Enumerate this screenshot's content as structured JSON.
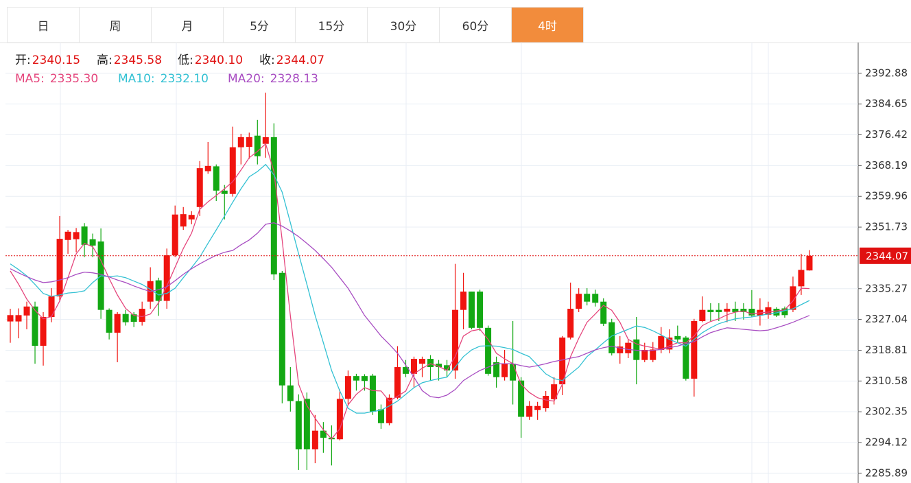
{
  "tabs": [
    "日",
    "周",
    "月",
    "5分",
    "15分",
    "30分",
    "60分",
    "4时"
  ],
  "active_tab": 7,
  "chart_data": {
    "type": "candlestick",
    "info": [
      {
        "label": "开:",
        "value": "2340.15"
      },
      {
        "label": "高:",
        "value": "2345.58"
      },
      {
        "label": "低:",
        "value": "2340.10"
      },
      {
        "label": "收:",
        "value": "2344.07"
      }
    ],
    "up_color": "#f0140f",
    "down_color": "#13a813",
    "info_label_color": "#222",
    "info_value_color": "#e01010",
    "open": [
      2326.5,
      2326.5,
      2328.1,
      2330.5,
      2320,
      2327.7,
      2333.2,
      2348.3,
      2348.5,
      2351.9,
      2348.5,
      2347.9,
      2329.6,
      2323.5,
      2328.5,
      2328.4,
      2326.4,
      2331.8,
      2337.5,
      2332,
      2344.2,
      2351.9,
      2353.8,
      2357.1,
      2366.7,
      2368,
      2361.5,
      2360.6,
      2373.1,
      2373.2,
      2376.2,
      2374,
      2375.8,
      2339.5,
      2309.4,
      2305.2,
      2305.8,
      2292.3,
      2297.3,
      2295.4,
      2295,
      2305.8,
      2311.9,
      2311.9,
      2312,
      2303,
      2299.3,
      2306.1,
      2314.3,
      2312.5,
      2315.2,
      2316.5,
      2315.2,
      2314.8,
      2313.4,
      2329.6,
      2334.5,
      2334.5,
      2324.8,
      2315.6,
      2311.6,
      2315.2,
      2310.7,
      2301,
      2302.8,
      2303.3,
      2305.7,
      2309.7,
      2322.2,
      2329.9,
      2333.9,
      2333.9,
      2331.8,
      2326.3,
      2318,
      2318,
      2321.7,
      2316.2,
      2316.2,
      2318.9,
      2319,
      2322.6,
      2322.2,
      2311.2,
      2326.6,
      2329.6,
      2329.6,
      2329.1,
      2329.9,
      2329.9,
      2329.9,
      2328.1,
      2328.3,
      2329.9,
      2330,
      2329.6,
      2335.9,
      2340.15
    ],
    "high": [
      2329.9,
      2330,
      2331.8,
      2331.8,
      2329,
      2335.4,
      2354.7,
      2351,
      2351.5,
      2352.8,
      2350,
      2351.4,
      2330,
      2329,
      2329.6,
      2329,
      2331.8,
      2341,
      2338.2,
      2346,
      2357.5,
      2357.1,
      2356,
      2369.4,
      2374.5,
      2368.5,
      2363,
      2378.6,
      2376.7,
      2377,
      2380.4,
      2387.7,
      2379.5,
      2340,
      2314.3,
      2307,
      2307.5,
      2301.5,
      2299.6,
      2298.7,
      2308.3,
      2313.4,
      2312.5,
      2312.4,
      2312.5,
      2304.3,
      2307,
      2319.9,
      2316.2,
      2317.1,
      2317.1,
      2317.5,
      2316.2,
      2316.2,
      2341.9,
      2339.5,
      2334.5,
      2335,
      2325.4,
      2317.1,
      2318.9,
      2326.6,
      2311.6,
      2305.2,
      2305,
      2307.9,
      2311.6,
      2322.6,
      2336.9,
      2335.4,
      2335.4,
      2335,
      2332.7,
      2327.2,
      2322.6,
      2321.7,
      2327.7,
      2320.8,
      2321,
      2325,
      2324.4,
      2325.4,
      2322.6,
      2327.2,
      2333.2,
      2331.4,
      2331.4,
      2331.4,
      2331.8,
      2331.4,
      2334.9,
      2332.7,
      2331.8,
      2330.3,
      2330.5,
      2338.5,
      2344.6,
      2345.58
    ],
    "low": [
      2320.8,
      2322,
      2324.4,
      2315.2,
      2314.7,
      2326.3,
      2332,
      2344.6,
      2345,
      2343.7,
      2343.7,
      2327.2,
      2321.7,
      2315.6,
      2325.4,
      2325,
      2325.4,
      2329.9,
      2328,
      2329.9,
      2343.7,
      2351,
      2352.5,
      2354.7,
      2366,
      2358.7,
      2353.8,
      2359.9,
      2368.5,
      2370,
      2368.5,
      2370.3,
      2337.6,
      2304.6,
      2302.4,
      2286.8,
      2286.8,
      2288.6,
      2291.4,
      2288,
      2294.7,
      2304.3,
      2308,
      2308,
      2301.5,
      2297.8,
      2298.7,
      2305.7,
      2311.6,
      2308.8,
      2311.6,
      2310.7,
      2310.7,
      2311.6,
      2311.2,
      2324.4,
      2324.4,
      2324,
      2312,
      2308.8,
      2310.7,
      2304.3,
      2295.4,
      2300.2,
      2300.2,
      2302.4,
      2304.3,
      2306.8,
      2321.7,
      2329,
      2330.8,
      2330.5,
      2325.3,
      2317.4,
      2315.2,
      2316.7,
      2309.7,
      2315.6,
      2315.6,
      2318,
      2318,
      2320.8,
      2310.7,
      2306.4,
      2326.3,
      2326.6,
      2326.6,
      2326.3,
      2326.6,
      2327,
      2327.7,
      2325.4,
      2327.2,
      2327.7,
      2327.5,
      2329,
      2333.6,
      2340.1
    ],
    "close": [
      2328.2,
      2328.2,
      2330.5,
      2320,
      2327.7,
      2333.2,
      2348.6,
      2350.5,
      2350.4,
      2347,
      2346.8,
      2329.6,
      2323.5,
      2328.5,
      2326.3,
      2326.4,
      2329.9,
      2337.3,
      2332,
      2344.2,
      2355.1,
      2355.2,
      2355,
      2367.5,
      2368.1,
      2361.5,
      2360.6,
      2373.1,
      2375.8,
      2375.8,
      2370.7,
      2375.8,
      2339.1,
      2309.4,
      2305.2,
      2292.3,
      2292.3,
      2297.3,
      2295.4,
      2295,
      2305.8,
      2311.9,
      2310.7,
      2310.6,
      2302.4,
      2299.3,
      2306.1,
      2314.3,
      2312.5,
      2316.5,
      2316.5,
      2314.3,
      2314.3,
      2313.4,
      2329.6,
      2334.5,
      2324.8,
      2324.8,
      2312.5,
      2311.6,
      2315.2,
      2310.7,
      2301,
      2303.9,
      2303.9,
      2306.6,
      2309.7,
      2322.2,
      2329.9,
      2333.9,
      2331.8,
      2331.5,
      2325.9,
      2318,
      2319.8,
      2320.8,
      2316.2,
      2318.9,
      2319,
      2322.6,
      2322.2,
      2321.7,
      2311.2,
      2326.6,
      2329.6,
      2329,
      2329,
      2329.9,
      2329,
      2329,
      2328.1,
      2329.6,
      2330.3,
      2328.1,
      2328.2,
      2335.9,
      2340.3,
      2344.07
    ],
    "series": [
      {
        "name": "MA5:",
        "value_label": "2335.30",
        "color": "#e5457c",
        "values": [
          2340,
          2336.5,
          2332.5,
          2329.5,
          2327.2,
          2327.8,
          2332,
          2338.2,
          2344.6,
          2347.4,
          2346.5,
          2342.8,
          2338,
          2333.6,
          2330,
          2328.1,
          2327.8,
          2328.5,
          2331.5,
          2336,
          2341,
          2346,
          2350.1,
          2356.5,
          2358.5,
          2360.2,
          2362,
          2363.9,
          2367,
          2370.3,
          2372,
          2374,
          2366.6,
          2348.3,
          2328,
          2309.7,
          2304,
          2300.6,
          2297.5,
          2295.1,
          2297.8,
          2304.2,
          2307,
          2308.8,
          2308,
          2307.9,
          2305.2,
          2306.5,
          2307.9,
          2312.5,
          2314,
          2315.2,
          2314.5,
          2313.4,
          2317.1,
          2322.6,
          2324,
          2324.4,
          2321.7,
          2318,
          2316.5,
          2315.2,
          2309.7,
          2307.5,
          2306.1,
          2305.5,
          2305.2,
          2309.7,
          2317.1,
          2322,
          2326.3,
          2328.5,
          2330.8,
          2329.5,
          2326.3,
          2321.7,
          2320.5,
          2319.9,
          2319.5,
          2319,
          2320,
          2320.8,
          2320.8,
          2322.6,
          2325.4,
          2326.5,
          2327.2,
          2328.3,
          2329,
          2329.3,
          2328.5,
          2328.8,
          2329,
          2329.3,
          2329.6,
          2332,
          2335.4,
          2335.3
        ]
      },
      {
        "name": "MA10:",
        "value_label": "2332.10",
        "color": "#33c1d3",
        "values": [
          2341.9,
          2340.4,
          2338.7,
          2336.4,
          2334,
          2333.2,
          2333.6,
          2334.1,
          2334.3,
          2334.7,
          2336.9,
          2338.7,
          2338.5,
          2338.7,
          2338.2,
          2337.3,
          2336.4,
          2335.1,
          2333.6,
          2334,
          2335.4,
          2338.2,
          2340.9,
          2343.7,
          2347.4,
          2351,
          2354.7,
          2358.4,
          2362,
          2365.2,
          2366.6,
          2368.5,
          2365.7,
          2361.1,
          2352.9,
          2344.6,
          2336.4,
          2328.1,
          2320.8,
          2313.4,
          2307.9,
          2303.3,
          2302,
          2302,
          2302.4,
          2302.8,
          2303.9,
          2305.2,
          2307,
          2308.8,
          2310.1,
          2310.7,
          2311.2,
          2311.6,
          2314.3,
          2317.1,
          2318.9,
          2319.9,
          2320,
          2319.9,
          2319.5,
          2319,
          2318,
          2317.1,
          2314.8,
          2312.5,
          2311.2,
          2310.7,
          2312.5,
          2314.3,
          2317.1,
          2318.9,
          2320.8,
          2322.6,
          2323.5,
          2324.4,
          2325.3,
          2324.9,
          2324,
          2322.9,
          2321.7,
          2320.8,
          2319.9,
          2321.7,
          2323.5,
          2324.8,
          2325.9,
          2326.6,
          2327.2,
          2327.5,
          2327.7,
          2328.1,
          2328.5,
          2328.8,
          2329.4,
          2329.9,
          2331,
          2332.1
        ]
      },
      {
        "name": "MA20:",
        "value_label": "2328.13",
        "color": "#a84dc2",
        "values": [
          2340.6,
          2339.5,
          2338.5,
          2337.6,
          2336.9,
          2337.1,
          2337.6,
          2338.2,
          2339.1,
          2339.7,
          2339.5,
          2339.1,
          2338.4,
          2337.6,
          2336.9,
          2336,
          2335.2,
          2334.5,
          2335,
          2335.8,
          2337.4,
          2339.1,
          2340.6,
          2341.9,
          2343.1,
          2344.2,
          2345,
          2345.5,
          2347,
          2348.3,
          2350.1,
          2352.5,
          2352.9,
          2352,
          2350.7,
          2349.2,
          2347.4,
          2345.5,
          2343.3,
          2341,
          2338.2,
          2335.4,
          2331.8,
          2328.1,
          2325.4,
          2322.6,
          2320.4,
          2318,
          2314.8,
          2311.6,
          2308,
          2306.4,
          2306.1,
          2306.8,
          2308.3,
          2310.7,
          2312.1,
          2313.4,
          2314.3,
          2315.2,
          2315.2,
          2315.2,
          2314.7,
          2314.3,
          2314.7,
          2315.2,
          2315.8,
          2316.2,
          2316.7,
          2317.1,
          2318,
          2318.9,
          2319.5,
          2319.9,
          2319.4,
          2319,
          2318.8,
          2318.6,
          2318.8,
          2319,
          2319.5,
          2319.9,
          2320.6,
          2321.1,
          2322.4,
          2323.5,
          2324.2,
          2324.8,
          2324.6,
          2324.4,
          2324.2,
          2324,
          2324.2,
          2324.8,
          2325.5,
          2326.3,
          2327.2,
          2328.1
        ]
      }
    ],
    "last_price": 2344.07,
    "ylim": [
      2283.3,
      2401.1
    ],
    "yticks": [
      2392.88,
      2384.65,
      2376.42,
      2368.19,
      2359.96,
      2351.73,
      2335.27,
      2327.04,
      2318.81,
      2310.58,
      2302.35,
      2294.12,
      2285.89
    ],
    "grid": true
  }
}
